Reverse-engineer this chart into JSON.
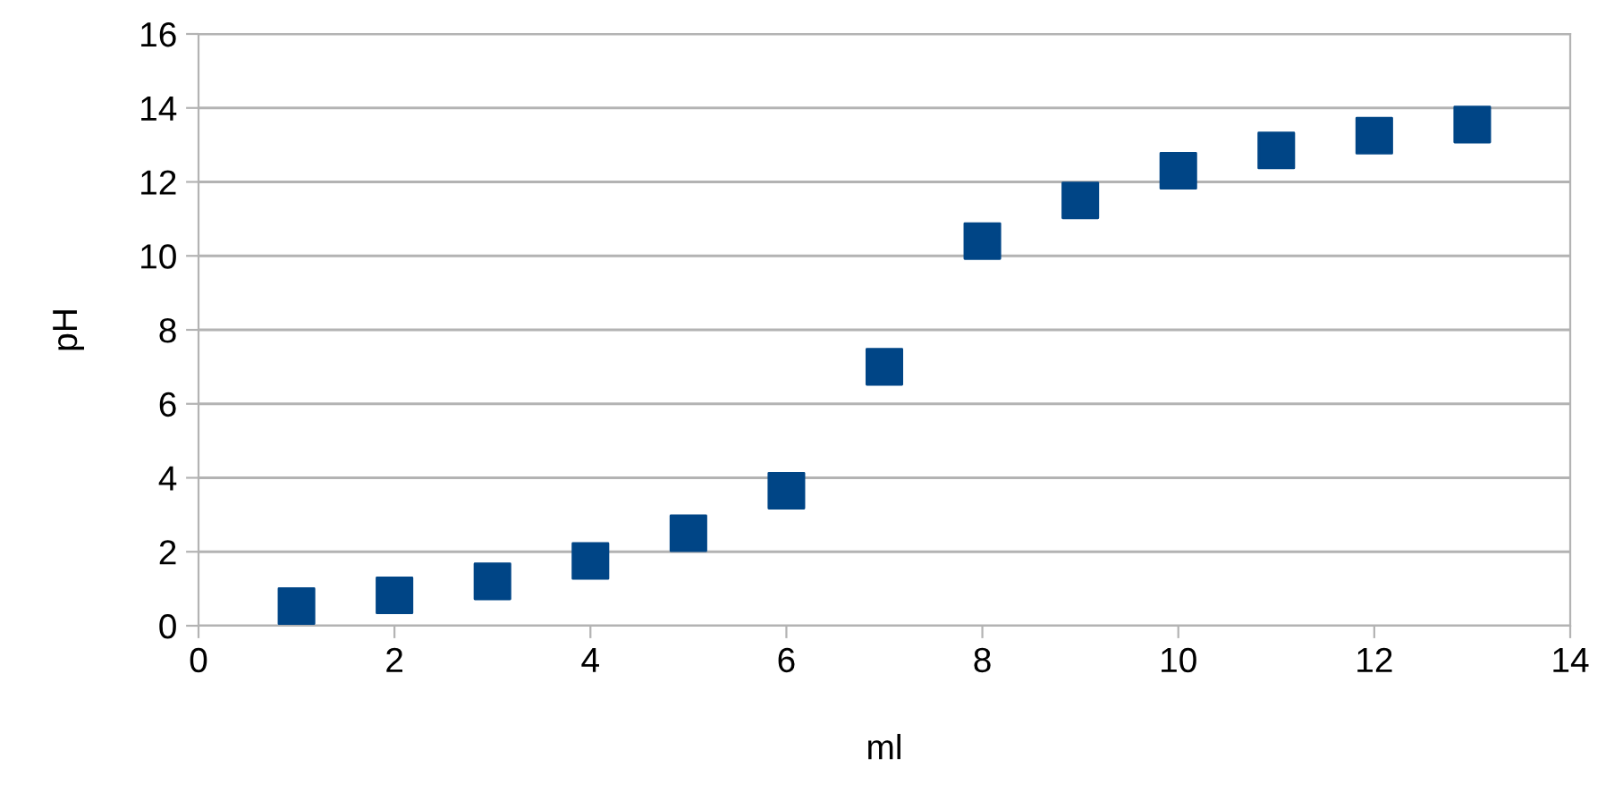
{
  "chart_data": {
    "type": "scatter",
    "xlabel": "ml",
    "ylabel": "pH",
    "x": [
      1,
      2,
      3,
      4,
      5,
      6,
      7,
      8,
      9,
      10,
      11,
      12,
      13
    ],
    "series": [
      {
        "color": "#004586",
        "values": [
          0.53,
          0.82,
          1.2,
          1.75,
          2.5,
          3.65,
          7.0,
          10.4,
          11.5,
          12.3,
          12.85,
          13.25,
          13.55
        ]
      }
    ],
    "xlim": [
      0,
      14
    ],
    "xticks": [
      0,
      2,
      4,
      6,
      8,
      10,
      12,
      14
    ],
    "ylim": [
      0,
      16
    ],
    "yticks": [
      0,
      2,
      4,
      6,
      8,
      10,
      12,
      14,
      16
    ],
    "grid": "y",
    "marker": "square",
    "legend": false
  }
}
